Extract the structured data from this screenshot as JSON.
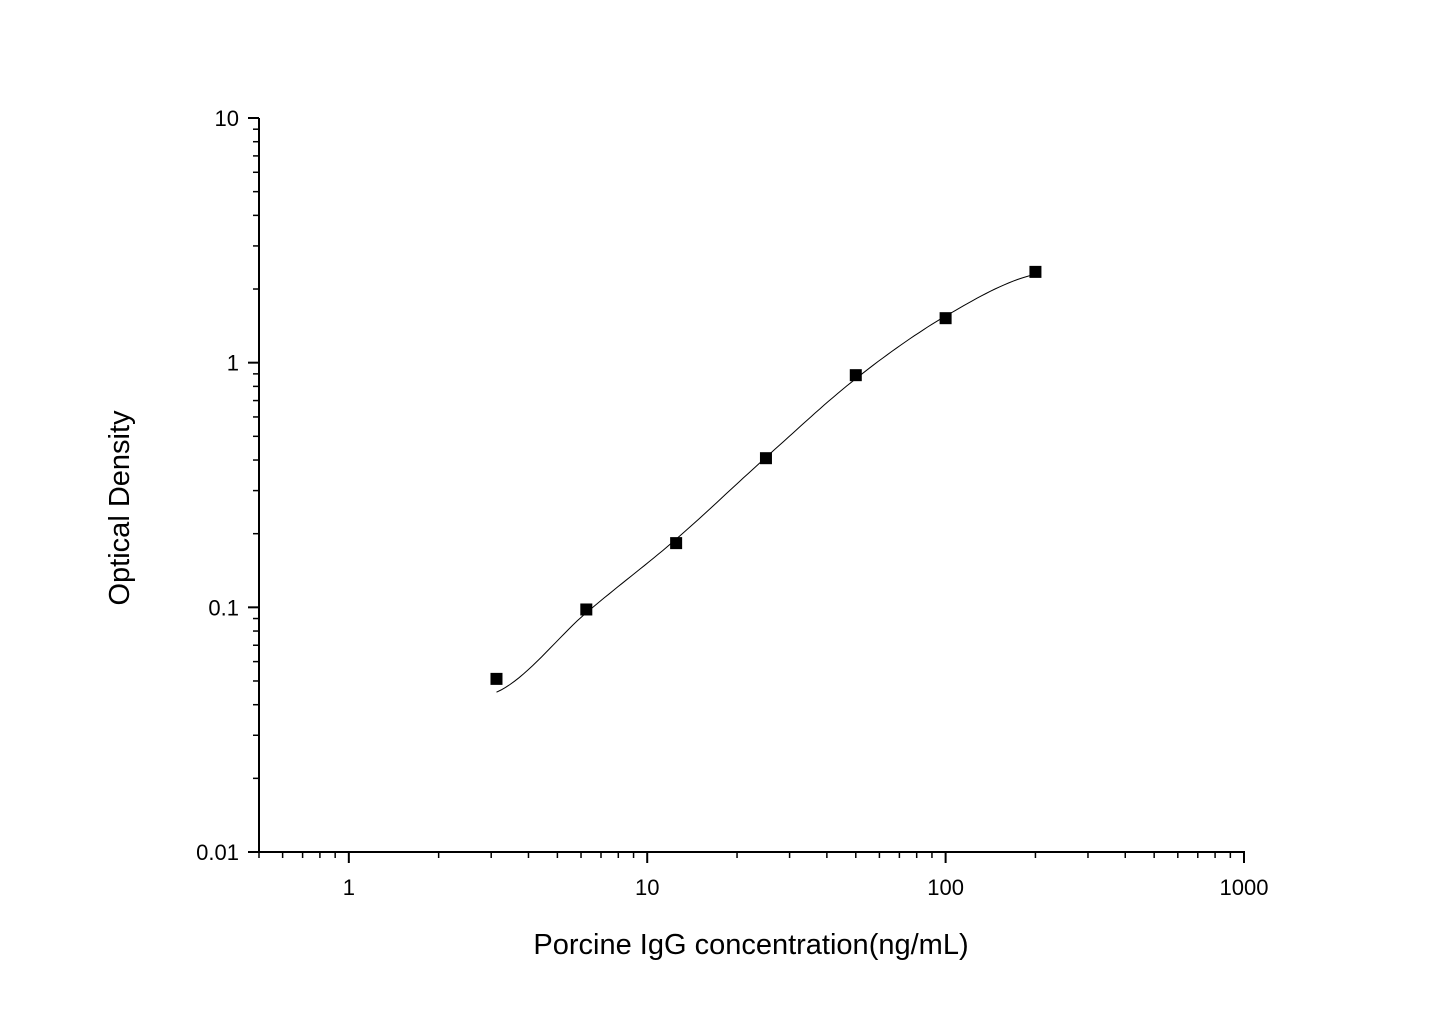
{
  "chart_data": {
    "type": "scatter",
    "title": "",
    "xlabel": "Porcine IgG concentration(ng/mL)",
    "ylabel": "Optical Density",
    "x_scale": "log",
    "y_scale": "log",
    "xlim": [
      0.5,
      1000
    ],
    "ylim": [
      0.01,
      10
    ],
    "x_ticks": [
      1,
      10,
      100,
      1000
    ],
    "x_tick_labels": [
      "1",
      "10",
      "100",
      "1000"
    ],
    "y_ticks": [
      0.01,
      0.1,
      1,
      10
    ],
    "y_tick_labels": [
      "0.01",
      "0.1",
      "1",
      "10"
    ],
    "grid": false,
    "legend": "none",
    "series": [
      {
        "marker": "square",
        "color": "#000000",
        "x": [
          3.125,
          6.25,
          12.5,
          25,
          50,
          100,
          200
        ],
        "y": [
          0.051,
          0.098,
          0.183,
          0.407,
          0.889,
          1.52,
          2.35
        ]
      }
    ],
    "fit_curve": {
      "color": "#000000",
      "x": [
        3.125,
        6.25,
        12.5,
        25,
        50,
        100,
        200
      ],
      "y": [
        0.045,
        0.095,
        0.19,
        0.41,
        0.86,
        1.55,
        2.3
      ]
    }
  }
}
